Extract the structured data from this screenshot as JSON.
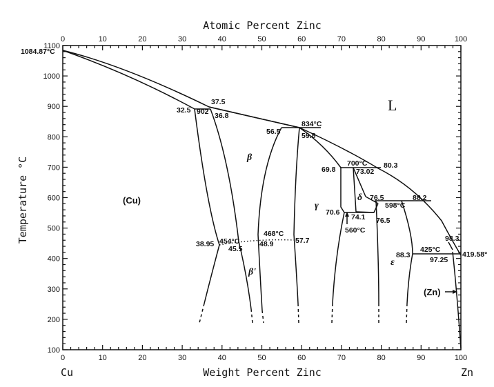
{
  "axes": {
    "top_title": "Atomic Percent Zinc",
    "bottom_title": "Weight Percent Zinc",
    "left_title": "Temperature °C",
    "x_ticks": [
      "0",
      "10",
      "20",
      "30",
      "40",
      "50",
      "60",
      "70",
      "80",
      "90",
      "100"
    ],
    "y_ticks": [
      "100",
      "200",
      "300",
      "400",
      "500",
      "600",
      "700",
      "800",
      "900",
      "1000",
      "1100"
    ],
    "left_element": "Cu",
    "right_element": "Zn"
  },
  "phases": {
    "liquid": "L",
    "cu": "(Cu)",
    "zn": "(Zn)",
    "beta": "β",
    "beta_prime": "β'",
    "gamma": "γ",
    "delta": "δ",
    "epsilon": "ε"
  },
  "labels": {
    "cu_melt": "1084.87°C",
    "zn_melt": "419.58°",
    "l_375": "37.5",
    "l_325": "32.5",
    "l_902": "902",
    "l_368": "36.8",
    "l_834": "834°C",
    "l_565": "56.5",
    "l_598": "59.8",
    "l_698": "69.8",
    "l_700": "700°C",
    "l_7302": "73.02",
    "l_803": "80.3",
    "l_765a": "76.5",
    "l_598c": "598°C",
    "l_882": "88.2",
    "l_706": "70.6",
    "l_741": "74.1",
    "l_765b": "76.5",
    "l_560": "560°C",
    "l_468": "468°C",
    "l_454": "454°C",
    "l_3895": "38.95",
    "l_455": "45.5",
    "l_489": "48.9",
    "l_577": "57.7",
    "l_425": "425°C",
    "l_883": "88.3",
    "l_9725": "97.25",
    "l_983": "98.3"
  }
}
